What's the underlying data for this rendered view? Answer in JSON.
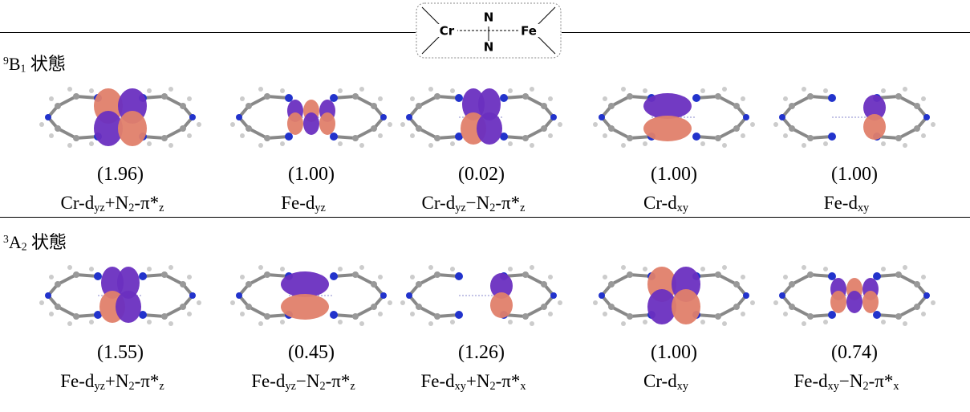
{
  "inset": {
    "left": "Cr",
    "right": "Fe",
    "top": "N",
    "bottom": "N"
  },
  "rows": [
    {
      "state": [
        {
          "t": "9",
          "sup": true
        },
        {
          "t": "B"
        },
        {
          "t": "1",
          "sub": true
        },
        {
          "t": " 状態"
        }
      ],
      "items": [
        {
          "occupation": "(1.96)",
          "label": [
            {
              "t": "Cr-d"
            },
            {
              "t": "yz",
              "sub": true
            },
            {
              "t": "+N"
            },
            {
              "t": "2",
              "sub": true
            },
            {
              "t": "-π*"
            },
            {
              "t": "z",
              "sub": true
            }
          ]
        },
        {
          "occupation": "(1.00)",
          "label": [
            {
              "t": "Fe-d"
            },
            {
              "t": "yz",
              "sub": true
            }
          ]
        },
        {
          "occupation": "(0.02)",
          "label": [
            {
              "t": "Cr-d"
            },
            {
              "t": "yz",
              "sub": true
            },
            {
              "t": "−N"
            },
            {
              "t": "2",
              "sub": true
            },
            {
              "t": "-π*"
            },
            {
              "t": "z",
              "sub": true
            }
          ]
        },
        {
          "occupation": "(1.00)",
          "label": [
            {
              "t": "Cr-d"
            },
            {
              "t": "xy",
              "sub": true
            }
          ]
        },
        {
          "occupation": "(1.00)",
          "label": [
            {
              "t": "Fe-d"
            },
            {
              "t": "xy",
              "sub": true
            }
          ]
        }
      ]
    },
    {
      "state": [
        {
          "t": "3",
          "sup": true
        },
        {
          "t": "A"
        },
        {
          "t": "2",
          "sub": true
        },
        {
          "t": " 状態"
        }
      ],
      "items": [
        {
          "occupation": "(1.55)",
          "label": [
            {
              "t": "Fe-d"
            },
            {
              "t": "yz",
              "sub": true
            },
            {
              "t": "+N"
            },
            {
              "t": "2",
              "sub": true
            },
            {
              "t": "-π*"
            },
            {
              "t": "z",
              "sub": true
            }
          ]
        },
        {
          "occupation": "(0.45)",
          "label": [
            {
              "t": "Fe-d"
            },
            {
              "t": "yz",
              "sub": true
            },
            {
              "t": "−N"
            },
            {
              "t": "2",
              "sub": true
            },
            {
              "t": "-π*"
            },
            {
              "t": "z",
              "sub": true
            }
          ]
        },
        {
          "occupation": "(1.26)",
          "label": [
            {
              "t": "Fe-d"
            },
            {
              "t": "xy",
              "sub": true
            },
            {
              "t": "+N"
            },
            {
              "t": "2",
              "sub": true
            },
            {
              "t": "-π*"
            },
            {
              "t": "x",
              "sub": true
            }
          ]
        },
        {
          "occupation": "(1.00)",
          "label": [
            {
              "t": "Cr-d"
            },
            {
              "t": "xy",
              "sub": true
            }
          ]
        },
        {
          "occupation": "(0.74)",
          "label": [
            {
              "t": "Fe-d"
            },
            {
              "t": "xy",
              "sub": true
            },
            {
              "t": "−N"
            },
            {
              "t": "2",
              "sub": true
            },
            {
              "t": "-π*"
            },
            {
              "t": "x",
              "sub": true
            }
          ]
        }
      ]
    }
  ]
}
